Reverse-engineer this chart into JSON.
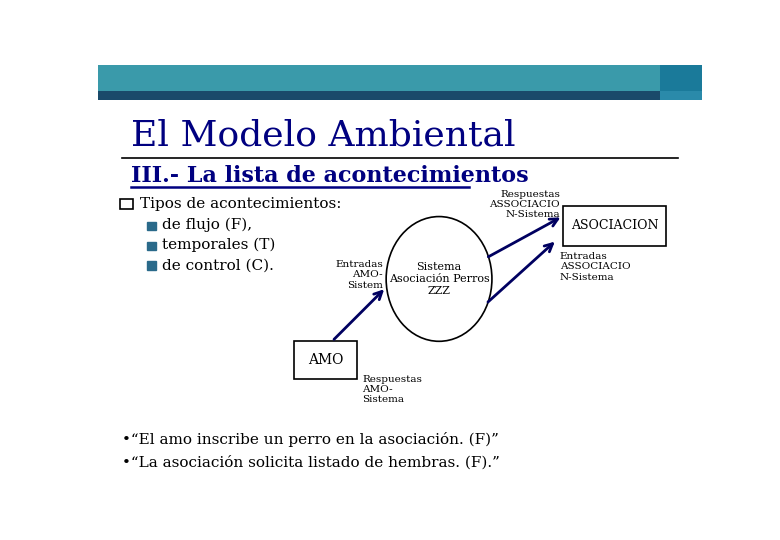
{
  "title": "El Modelo Ambiental",
  "subtitle": "III.- La lista de acontecimientos",
  "bg_color": "#ffffff",
  "header_teal": "#3a9aaa",
  "header_dark": "#1a4a6a",
  "header_sq_color": "#1a7a9a",
  "bullet_main": "Tipos de acontecimientos:",
  "bullets": [
    "de flujo (F),",
    "temporales (T)",
    "de control (C)."
  ],
  "circle_label": "Sistema\nAsociación Perros\nZZZ",
  "box_amo_label": "AMO",
  "box_asoc_label": "ASOCIACION",
  "label_entradas": "Entradas\nAMO-\nSistem",
  "label_respuestas_amo": "Respuestas\nAMO-\nSistema",
  "label_respuestas_asoc": "Respuestas\nASSOCIACIO\nN-Sistema",
  "label_entradas_asoc": "Entradas\nASSOCIACIO\nN-Sistema",
  "quote1": "•“El amo inscribe un perro en la asociación. (F)”",
  "quote2": "•“La asociación solicita listado de hembras. (F).”",
  "text_color": "#000080",
  "black": "#000000",
  "bullet_color": "#2a6a8a"
}
